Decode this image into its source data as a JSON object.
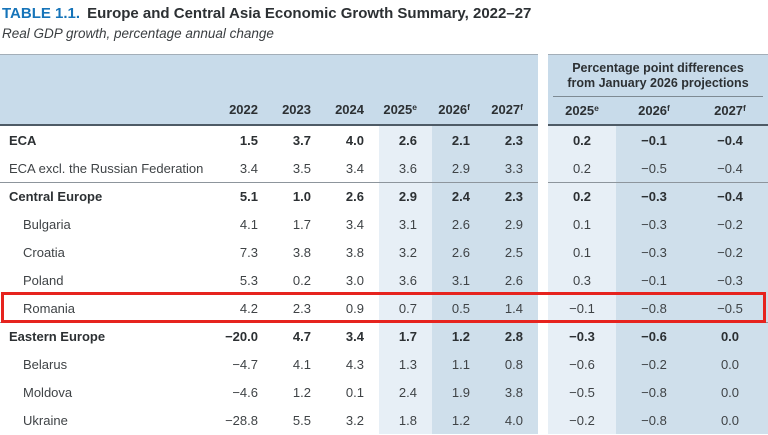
{
  "title": {
    "tag": "TABLE 1.1.",
    "text": "Europe and Central Asia Economic Growth Summary, 2022–27"
  },
  "subtitle": "Real GDP growth, percentage annual change",
  "left_header_years": [
    {
      "label": "2022",
      "sup": ""
    },
    {
      "label": "2023",
      "sup": ""
    },
    {
      "label": "2024",
      "sup": ""
    },
    {
      "label": "2025",
      "sup": "e"
    },
    {
      "label": "2026",
      "sup": "f"
    },
    {
      "label": "2027",
      "sup": "f"
    }
  ],
  "right_header": {
    "line1": "Percentage point differences",
    "line2": "from January 2026 projections",
    "years": [
      {
        "label": "2025",
        "sup": "e"
      },
      {
        "label": "2026",
        "sup": "f"
      },
      {
        "label": "2027",
        "sup": "f"
      }
    ]
  },
  "rows": [
    {
      "label": "ECA",
      "bold": true,
      "indent": false,
      "section_start": false,
      "highlight": false,
      "values": [
        "1.5",
        "3.7",
        "4.0",
        "2.6",
        "2.1",
        "2.3"
      ],
      "diffs": [
        "0.2",
        "−0.1",
        "−0.4"
      ]
    },
    {
      "label": "ECA excl. the Russian Federation",
      "bold": false,
      "indent": false,
      "section_start": false,
      "highlight": false,
      "values": [
        "3.4",
        "3.5",
        "3.4",
        "3.6",
        "2.9",
        "3.3"
      ],
      "diffs": [
        "0.2",
        "−0.5",
        "−0.4"
      ]
    },
    {
      "label": "Central Europe",
      "bold": true,
      "indent": false,
      "section_start": true,
      "highlight": false,
      "values": [
        "5.1",
        "1.0",
        "2.6",
        "2.9",
        "2.4",
        "2.3"
      ],
      "diffs": [
        "0.2",
        "−0.3",
        "−0.4"
      ]
    },
    {
      "label": "Bulgaria",
      "bold": false,
      "indent": true,
      "section_start": false,
      "highlight": false,
      "values": [
        "4.1",
        "1.7",
        "3.4",
        "3.1",
        "2.6",
        "2.9"
      ],
      "diffs": [
        "0.1",
        "−0.3",
        "−0.2"
      ]
    },
    {
      "label": "Croatia",
      "bold": false,
      "indent": true,
      "section_start": false,
      "highlight": false,
      "values": [
        "7.3",
        "3.8",
        "3.8",
        "3.2",
        "2.6",
        "2.5"
      ],
      "diffs": [
        "0.1",
        "−0.3",
        "−0.2"
      ]
    },
    {
      "label": "Poland",
      "bold": false,
      "indent": true,
      "section_start": false,
      "highlight": false,
      "values": [
        "5.3",
        "0.2",
        "3.0",
        "3.6",
        "3.1",
        "2.6"
      ],
      "diffs": [
        "0.3",
        "−0.1",
        "−0.3"
      ]
    },
    {
      "label": "Romania",
      "bold": false,
      "indent": true,
      "section_start": false,
      "highlight": true,
      "values": [
        "4.2",
        "2.3",
        "0.9",
        "0.7",
        "0.5",
        "1.4"
      ],
      "diffs": [
        "−0.1",
        "−0.8",
        "−0.5"
      ]
    },
    {
      "label": "Eastern Europe",
      "bold": true,
      "indent": false,
      "section_start": true,
      "highlight": false,
      "values": [
        "−20.0",
        "4.7",
        "3.4",
        "1.7",
        "1.2",
        "2.8"
      ],
      "diffs": [
        "−0.3",
        "−0.6",
        "0.0"
      ]
    },
    {
      "label": "Belarus",
      "bold": false,
      "indent": true,
      "section_start": false,
      "highlight": false,
      "values": [
        "−4.7",
        "4.1",
        "4.3",
        "1.3",
        "1.1",
        "0.8"
      ],
      "diffs": [
        "−0.6",
        "−0.2",
        "0.0"
      ]
    },
    {
      "label": "Moldova",
      "bold": false,
      "indent": true,
      "section_start": false,
      "highlight": false,
      "values": [
        "−4.6",
        "1.2",
        "0.1",
        "2.4",
        "1.9",
        "3.8"
      ],
      "diffs": [
        "−0.5",
        "−0.8",
        "0.0"
      ]
    },
    {
      "label": "Ukraine",
      "bold": false,
      "indent": true,
      "section_start": false,
      "highlight": false,
      "values": [
        "−28.8",
        "5.5",
        "3.2",
        "1.8",
        "1.2",
        "4.0"
      ],
      "diffs": [
        "−0.2",
        "−0.8",
        "0.0"
      ]
    }
  ],
  "colors": {
    "accent_blue": "#1674b9",
    "header_bg": "#c8dbea",
    "column_light": "#e7eff6",
    "column_medium": "#cfdfeb",
    "highlight_red": "#e6231e"
  }
}
